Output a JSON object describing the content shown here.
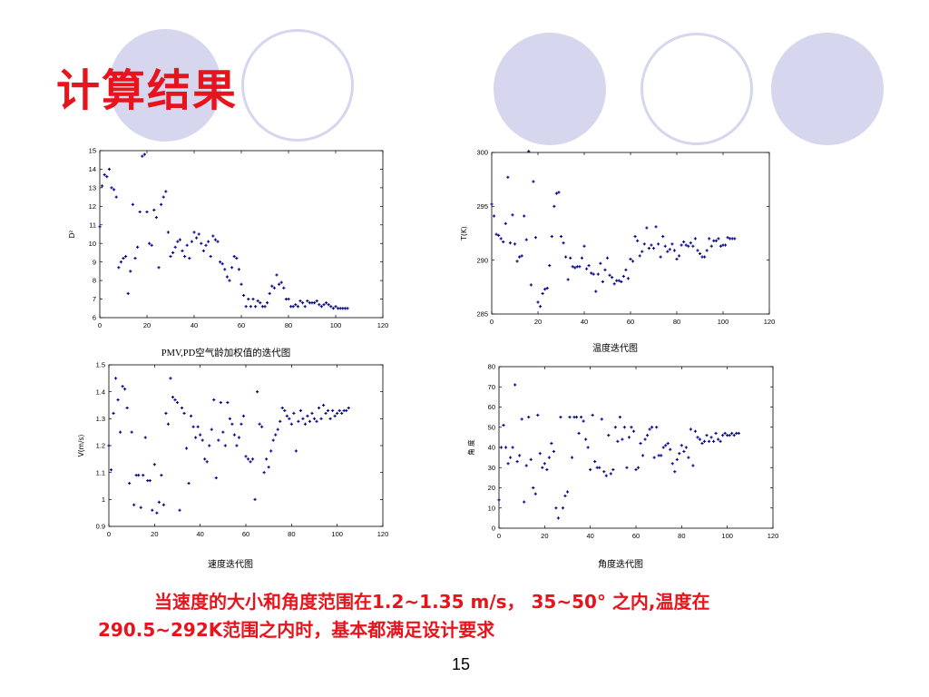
{
  "slide": {
    "title": "计算结果",
    "conclusion": [
      "当速度的大小和角度范围在1.2~1.35 m/s， 35~50° 之内,温度在",
      "290.5~292K范围之内时，基本都满足设计要求"
    ],
    "page_number": "15",
    "colors": {
      "accent": "#e8141c",
      "decor": "#d6d6ee",
      "marker": "#00008b"
    }
  },
  "charts": {
    "pmv": {
      "caption": "PMV,PD空气龄加权值的迭代图"
    },
    "temp": {
      "caption": "温度迭代图"
    },
    "speed": {
      "caption": "速度迭代图"
    },
    "angle": {
      "caption": "角度迭代图"
    }
  },
  "chart_data": [
    {
      "id": "pmv",
      "type": "scatter",
      "title": "PMV,PD空气龄加权值的迭代图",
      "xlabel": "",
      "ylabel": "D²",
      "xlim": [
        0,
        120
      ],
      "ylim": [
        6,
        15
      ],
      "xticks": [
        0,
        20,
        40,
        60,
        80,
        100,
        120
      ],
      "yticks": [
        6,
        7,
        8,
        9,
        10,
        11,
        12,
        13,
        14,
        15
      ],
      "grid": false,
      "marker": "#00008b",
      "x": [
        0,
        1,
        2,
        3,
        4,
        5,
        6,
        7,
        8,
        9,
        10,
        11,
        12,
        13,
        14,
        15,
        16,
        17,
        18,
        19,
        20,
        21,
        22,
        23,
        24,
        25,
        26,
        27,
        28,
        29,
        30,
        31,
        32,
        33,
        34,
        35,
        36,
        37,
        38,
        39,
        40,
        41,
        42,
        43,
        44,
        45,
        46,
        47,
        48,
        49,
        50,
        51,
        52,
        53,
        54,
        55,
        56,
        57,
        58,
        59,
        60,
        61,
        62,
        63,
        64,
        65,
        66,
        67,
        68,
        69,
        70,
        71,
        72,
        73,
        74,
        75,
        76,
        77,
        78,
        79,
        80,
        81,
        82,
        83,
        84,
        85,
        86,
        87,
        88,
        89,
        90,
        91,
        92,
        93,
        94,
        95,
        96,
        97,
        98,
        99,
        100,
        101,
        102,
        103,
        104,
        105
      ],
      "y": [
        10.9,
        13.1,
        13.7,
        13.6,
        14.0,
        13.0,
        12.9,
        12.5,
        8.7,
        9.0,
        9.2,
        9.3,
        7.3,
        8.5,
        12.1,
        9.2,
        9.8,
        11.7,
        14.7,
        14.8,
        11.7,
        10.0,
        9.9,
        11.8,
        11.4,
        8.7,
        12.1,
        12.5,
        12.8,
        10.6,
        9.3,
        9.5,
        9.8,
        10.1,
        10.2,
        9.6,
        9.3,
        9.9,
        9.2,
        10.1,
        10.6,
        10.3,
        10.5,
        10.0,
        9.6,
        9.9,
        10.1,
        9.3,
        10.4,
        10.2,
        10.1,
        9.0,
        8.9,
        8.6,
        8.2,
        8.0,
        8.7,
        9.3,
        9.2,
        8.6,
        7.8,
        7.2,
        6.6,
        7.0,
        6.6,
        7.0,
        6.6,
        6.9,
        6.8,
        6.6,
        6.6,
        6.8,
        7.3,
        7.7,
        7.6,
        8.3,
        7.8,
        7.9,
        7.6,
        7.0,
        7.0,
        6.6,
        6.6,
        6.7,
        6.6,
        6.9,
        6.8,
        6.6,
        6.9,
        6.8,
        6.8,
        6.8,
        6.9,
        6.7,
        6.6,
        6.7,
        6.8,
        6.7,
        6.6,
        6.5,
        6.6,
        6.5,
        6.5,
        6.5,
        6.5,
        6.5
      ]
    },
    {
      "id": "temp",
      "type": "scatter",
      "title": "温度迭代图",
      "xlabel": "",
      "ylabel": "T(K)",
      "xlim": [
        0,
        120
      ],
      "ylim": [
        285,
        300
      ],
      "xticks": [
        0,
        20,
        40,
        60,
        80,
        100,
        120
      ],
      "yticks": [
        285,
        290,
        295,
        300
      ],
      "grid": false,
      "marker": "#00008b",
      "x": [
        0,
        1,
        2,
        3,
        4,
        5,
        6,
        7,
        8,
        9,
        10,
        11,
        12,
        13,
        14,
        15,
        16,
        17,
        18,
        19,
        20,
        21,
        22,
        23,
        24,
        25,
        26,
        27,
        28,
        29,
        30,
        31,
        32,
        33,
        34,
        35,
        36,
        37,
        38,
        39,
        40,
        41,
        42,
        43,
        44,
        45,
        46,
        47,
        48,
        49,
        50,
        51,
        52,
        53,
        54,
        55,
        56,
        57,
        58,
        59,
        60,
        61,
        62,
        63,
        64,
        65,
        66,
        67,
        68,
        69,
        70,
        71,
        72,
        73,
        74,
        75,
        76,
        77,
        78,
        79,
        80,
        81,
        82,
        83,
        84,
        85,
        86,
        87,
        88,
        89,
        90,
        91,
        92,
        93,
        94,
        95,
        96,
        97,
        98,
        99,
        100,
        101,
        102,
        103,
        104,
        105
      ],
      "y": [
        295.2,
        294.1,
        292.4,
        292.3,
        292.0,
        291.7,
        293.4,
        297.7,
        291.6,
        294.2,
        291.5,
        289.9,
        290.3,
        290.4,
        294.1,
        291.9,
        300.1,
        287.7,
        297.3,
        292.1,
        286.1,
        285.7,
        286.9,
        287.3,
        287.4,
        289.5,
        292.2,
        295.0,
        296.2,
        296.3,
        292.2,
        291.6,
        290.3,
        288.2,
        290.2,
        289.4,
        289.3,
        289.4,
        289.4,
        290.2,
        291.3,
        289.2,
        289.5,
        288.8,
        288.7,
        287.1,
        288.7,
        289.7,
        288.0,
        289.1,
        290.2,
        288.6,
        288.4,
        287.8,
        288.1,
        288.1,
        288.0,
        288.5,
        289.1,
        288.3,
        290.1,
        289.9,
        292.2,
        291.8,
        290.4,
        290.8,
        291.5,
        293.0,
        291.1,
        291.4,
        291.1,
        293.1,
        291.5,
        290.3,
        292.2,
        291.3,
        290.8,
        291.0,
        291.5,
        290.9,
        290.1,
        290.4,
        291.4,
        291.7,
        291.4,
        291.3,
        291.6,
        291.3,
        292.0,
        290.9,
        290.6,
        290.3,
        290.3,
        290.9,
        292.0,
        291.3,
        291.8,
        291.8,
        292.0,
        291.3,
        291.4,
        291.4,
        292.1,
        292.0,
        292.0,
        292.0
      ]
    },
    {
      "id": "speed",
      "type": "scatter",
      "title": "速度迭代图",
      "xlabel": "",
      "ylabel": "V(m/s)",
      "xlim": [
        0,
        120
      ],
      "ylim": [
        0.9,
        1.5
      ],
      "xticks": [
        0,
        20,
        40,
        60,
        80,
        100,
        120
      ],
      "yticks": [
        0.9,
        1.0,
        1.1,
        1.2,
        1.3,
        1.4,
        1.5
      ],
      "grid": false,
      "marker": "#00008b",
      "x": [
        0,
        1,
        2,
        3,
        4,
        5,
        6,
        7,
        8,
        9,
        10,
        11,
        12,
        13,
        14,
        15,
        16,
        17,
        18,
        19,
        20,
        21,
        22,
        23,
        24,
        25,
        26,
        27,
        28,
        29,
        30,
        31,
        32,
        33,
        34,
        35,
        36,
        37,
        38,
        39,
        40,
        41,
        42,
        43,
        44,
        45,
        46,
        47,
        48,
        49,
        50,
        51,
        52,
        53,
        54,
        55,
        56,
        57,
        58,
        59,
        60,
        61,
        62,
        63,
        64,
        65,
        66,
        67,
        68,
        69,
        70,
        71,
        72,
        73,
        74,
        75,
        76,
        77,
        78,
        79,
        80,
        81,
        82,
        83,
        84,
        85,
        86,
        87,
        88,
        89,
        90,
        91,
        92,
        93,
        94,
        95,
        96,
        97,
        98,
        99,
        100,
        101,
        102,
        103,
        104,
        105
      ],
      "y": [
        1.2,
        1.11,
        1.32,
        1.45,
        1.37,
        1.25,
        1.42,
        1.41,
        1.34,
        1.06,
        1.25,
        0.98,
        1.09,
        1.09,
        0.97,
        1.09,
        1.23,
        1.07,
        1.07,
        0.96,
        1.13,
        0.95,
        0.99,
        1.09,
        0.98,
        1.32,
        1.28,
        1.45,
        1.38,
        1.37,
        1.36,
        0.96,
        1.34,
        1.32,
        1.19,
        1.06,
        1.31,
        1.27,
        1.23,
        1.27,
        1.24,
        1.22,
        1.15,
        1.14,
        1.2,
        1.26,
        1.37,
        1.08,
        1.22,
        1.36,
        1.25,
        1.2,
        1.36,
        1.3,
        1.28,
        1.24,
        1.2,
        1.23,
        1.28,
        1.31,
        1.16,
        1.15,
        1.14,
        1.15,
        1.0,
        1.4,
        1.28,
        1.27,
        1.1,
        1.15,
        1.12,
        1.18,
        1.22,
        1.24,
        1.26,
        1.29,
        1.34,
        1.33,
        1.31,
        1.3,
        1.28,
        1.32,
        1.18,
        1.29,
        1.33,
        1.3,
        1.28,
        1.31,
        1.29,
        1.32,
        1.3,
        1.29,
        1.34,
        1.3,
        1.35,
        1.32,
        1.33,
        1.3,
        1.33,
        1.31,
        1.32,
        1.33,
        1.32,
        1.33,
        1.33,
        1.34
      ]
    },
    {
      "id": "angle",
      "type": "scatter",
      "title": "角度迭代图",
      "xlabel": "",
      "ylabel": "角 度",
      "xlim": [
        0,
        120
      ],
      "ylim": [
        0,
        80
      ],
      "xticks": [
        0,
        20,
        40,
        60,
        80,
        100,
        120
      ],
      "yticks": [
        0,
        10,
        20,
        30,
        40,
        50,
        60,
        70,
        80
      ],
      "grid": false,
      "marker": "#00008b",
      "x": [
        0,
        1,
        2,
        3,
        4,
        5,
        6,
        7,
        8,
        9,
        10,
        11,
        12,
        13,
        14,
        15,
        16,
        17,
        18,
        19,
        20,
        21,
        22,
        23,
        24,
        25,
        26,
        27,
        28,
        29,
        30,
        31,
        32,
        33,
        34,
        35,
        36,
        37,
        38,
        39,
        40,
        41,
        42,
        43,
        44,
        45,
        46,
        47,
        48,
        49,
        50,
        51,
        52,
        53,
        54,
        55,
        56,
        57,
        58,
        59,
        60,
        61,
        62,
        63,
        64,
        65,
        66,
        67,
        68,
        69,
        70,
        71,
        72,
        73,
        74,
        75,
        76,
        77,
        78,
        79,
        80,
        81,
        82,
        83,
        84,
        85,
        86,
        87,
        88,
        89,
        90,
        91,
        92,
        93,
        94,
        95,
        96,
        97,
        98,
        99,
        100,
        101,
        102,
        103,
        104,
        105
      ],
      "y": [
        14,
        40,
        51,
        40,
        32,
        35,
        40,
        71,
        33,
        36,
        54,
        13,
        31,
        55,
        34,
        20,
        17,
        56,
        37,
        30,
        32,
        29,
        35,
        42,
        38,
        10,
        5,
        55,
        10,
        16,
        18,
        55,
        35,
        55,
        55,
        47,
        55,
        53,
        44,
        40,
        29,
        56,
        33,
        30,
        30,
        54,
        28,
        26,
        46,
        27,
        29,
        50,
        43,
        55,
        44,
        50,
        30,
        45,
        50,
        48,
        29,
        30,
        42,
        36,
        44,
        46,
        49,
        50,
        35,
        50,
        36,
        36,
        40,
        41,
        42,
        39,
        32,
        28,
        34,
        37,
        41,
        38,
        40,
        35,
        49,
        31,
        48,
        45,
        44,
        42,
        43,
        46,
        43,
        45,
        43,
        47,
        44,
        43,
        46,
        47,
        46,
        46,
        47,
        46,
        47,
        47
      ]
    }
  ]
}
